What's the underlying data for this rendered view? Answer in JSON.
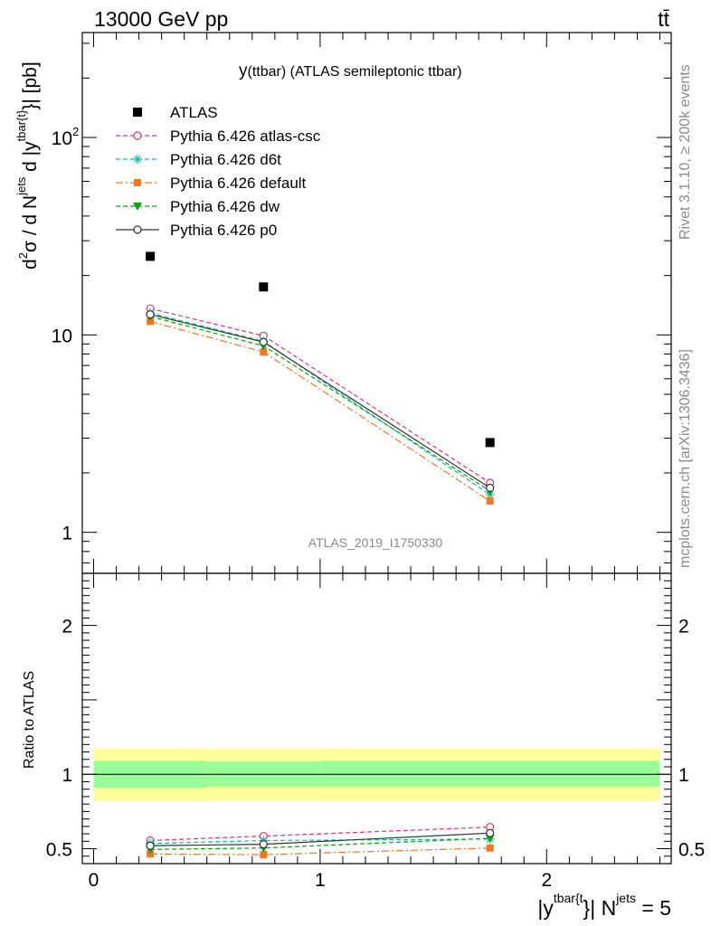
{
  "header": {
    "left": "13000 GeV pp",
    "right": "tt̄"
  },
  "side_text": {
    "rivet": "Rivet 3.1.10, ≥ 200k events",
    "mcplots": "mcplots.cern.ch [arXiv:1306.3436]"
  },
  "chart_data": {
    "type": "line",
    "title": "y(ttbar) (ATLAS semileptonic ttbar)",
    "title_main": "y",
    "title_paren": "(ttbar) (ATLAS semileptonic ttbar)",
    "watermark": "ATLAS_2019_I1750330",
    "ylabel": "d²σ / d N^jets d |y^tbar{t}| [pb]",
    "ylabel_parts": {
      "d1": "d",
      "sup2": "2",
      "sigma": "σ / d N",
      "jets": "jets",
      "d2": " d |y",
      "tbar": "tbar{t}",
      "tail": "}| [pb]"
    },
    "xlabel": "|y^tbar{t}}| N^jets = 5",
    "xlabel_parts": {
      "a": "|y",
      "sup1": "tbar{t",
      "b": "}| N",
      "sup2": "jets",
      "c": " = 5"
    },
    "yscale": "log",
    "ylim": [
      0.62,
      340
    ],
    "xlim": [
      -0.05,
      2.55
    ],
    "y_ticks": [
      {
        "v": 1,
        "label": "1"
      },
      {
        "v": 10,
        "label": "10"
      },
      {
        "v": 100,
        "label": "10",
        "exp": "2"
      }
    ],
    "x_ticks": [
      {
        "v": 0,
        "label": "0"
      },
      {
        "v": 1,
        "label": "1"
      },
      {
        "v": 2,
        "label": "2"
      }
    ],
    "x": [
      0.25,
      0.75,
      1.75
    ],
    "data": {
      "name": "ATLAS",
      "values": [
        25.0,
        17.5,
        2.85
      ],
      "color": "#000000"
    },
    "series": [
      {
        "name": "Pythia 6.426 atlas-csc",
        "values": [
          13.6,
          9.9,
          1.78
        ],
        "ratio": [
          0.555,
          0.585,
          0.645
        ],
        "color": "#e8345f",
        "dash": "5,3",
        "marker": "open-circle"
      },
      {
        "name": "Pythia 6.426 d6t",
        "values": [
          12.9,
          9.3,
          1.55
        ],
        "ratio": [
          0.535,
          0.555,
          0.565
        ],
        "color": "#10c0a0",
        "dash": "5,3",
        "marker": "star"
      },
      {
        "name": "Pythia 6.426 default",
        "values": [
          11.7,
          8.2,
          1.44
        ],
        "ratio": [
          0.465,
          0.46,
          0.505
        ],
        "color": "#f07820",
        "dash": "8,3,2,3",
        "marker": "filled-square"
      },
      {
        "name": "Pythia 6.426 dw",
        "values": [
          12.4,
          8.8,
          1.62
        ],
        "ratio": [
          0.495,
          0.505,
          0.57
        ],
        "color": "#10a010",
        "dash": "5,3",
        "marker": "filled-triangle-down"
      },
      {
        "name": "Pythia 6.426 p0",
        "values": [
          12.7,
          9.2,
          1.68
        ],
        "ratio": [
          0.52,
          0.53,
          0.605
        ],
        "color": "#333333",
        "dash": "",
        "marker": "open-circle"
      }
    ],
    "ratio_panel": {
      "ylabel": "Ratio to ATLAS",
      "ylim": [
        0.4,
        2.35
      ],
      "y_ticks": [
        {
          "v": 0.5,
          "label": "0.5"
        },
        {
          "v": 1,
          "label": "1"
        },
        {
          "v": 2,
          "label": "2"
        }
      ],
      "bins": [
        {
          "x0": 0.0,
          "x1": 0.5,
          "green": [
            0.91,
            1.09
          ],
          "yellow": [
            0.82,
            1.175
          ]
        },
        {
          "x0": 0.5,
          "x1": 1.0,
          "green": [
            0.915,
            1.085
          ],
          "yellow": [
            0.825,
            1.17
          ]
        },
        {
          "x0": 1.0,
          "x1": 2.5,
          "green": [
            0.915,
            1.09
          ],
          "yellow": [
            0.82,
            1.175
          ]
        }
      ],
      "band_colors": {
        "green": "#99ff99",
        "yellow": "#ffff99"
      }
    }
  }
}
